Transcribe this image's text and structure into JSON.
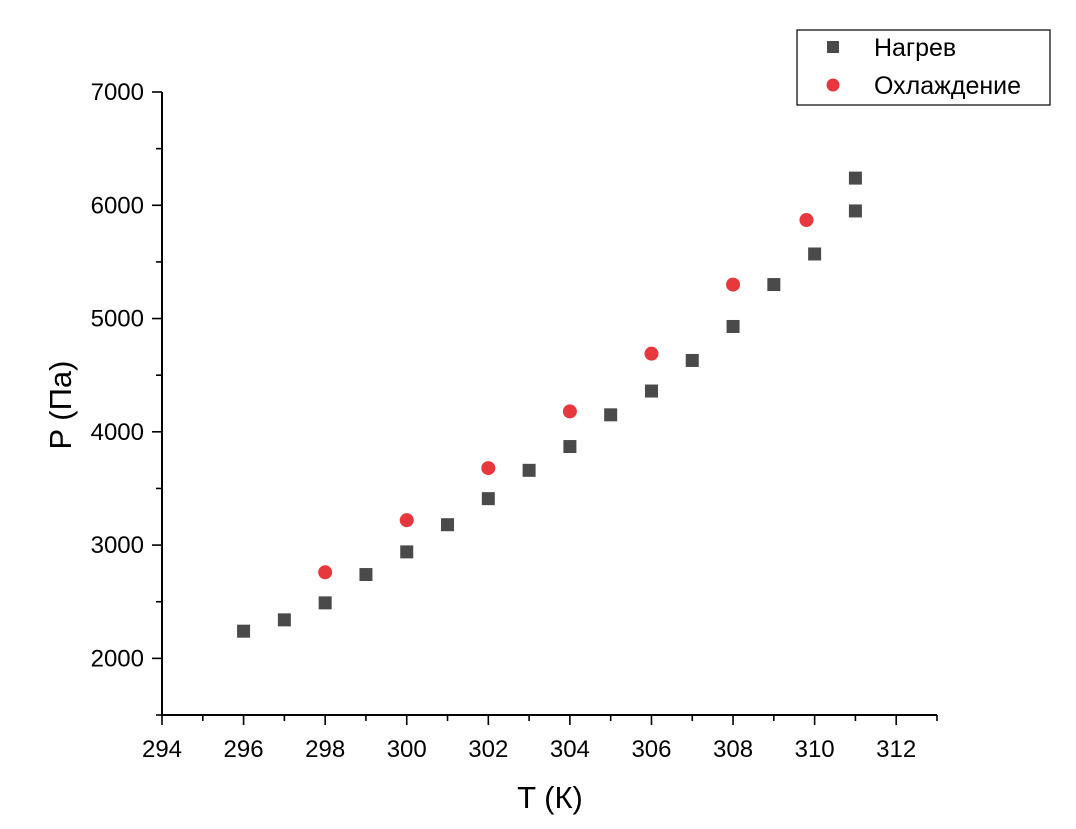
{
  "chart_data": {
    "type": "scatter",
    "xlabel": "T (К)",
    "ylabel": "P (Па)",
    "xlim": [
      294,
      313
    ],
    "ylim": [
      1500,
      7000
    ],
    "x_ticks": [
      294,
      296,
      298,
      300,
      302,
      304,
      306,
      308,
      310,
      312
    ],
    "y_ticks": [
      2000,
      3000,
      4000,
      5000,
      6000,
      7000
    ],
    "grid": false,
    "legend_position": "top-right",
    "series": [
      {
        "name": "Нагрев",
        "marker": "square",
        "color": "#4a4a4a",
        "points": [
          {
            "x": 296,
            "y": 2240
          },
          {
            "x": 297,
            "y": 2340
          },
          {
            "x": 298,
            "y": 2490
          },
          {
            "x": 299,
            "y": 2740
          },
          {
            "x": 300,
            "y": 2940
          },
          {
            "x": 301,
            "y": 3180
          },
          {
            "x": 302,
            "y": 3410
          },
          {
            "x": 303,
            "y": 3660
          },
          {
            "x": 304,
            "y": 3870
          },
          {
            "x": 305,
            "y": 4150
          },
          {
            "x": 306,
            "y": 4360
          },
          {
            "x": 307,
            "y": 4630
          },
          {
            "x": 308,
            "y": 4930
          },
          {
            "x": 309,
            "y": 5300
          },
          {
            "x": 310,
            "y": 5570
          },
          {
            "x": 311,
            "y": 5950
          },
          {
            "x": 311,
            "y": 6240
          }
        ]
      },
      {
        "name": "Охлаждение",
        "marker": "circle",
        "color": "#e8383d",
        "points": [
          {
            "x": 298,
            "y": 2760
          },
          {
            "x": 300,
            "y": 3220
          },
          {
            "x": 302,
            "y": 3680
          },
          {
            "x": 304,
            "y": 4180
          },
          {
            "x": 306,
            "y": 4690
          },
          {
            "x": 308,
            "y": 5300
          },
          {
            "x": 309.8,
            "y": 5870
          }
        ]
      }
    ]
  }
}
